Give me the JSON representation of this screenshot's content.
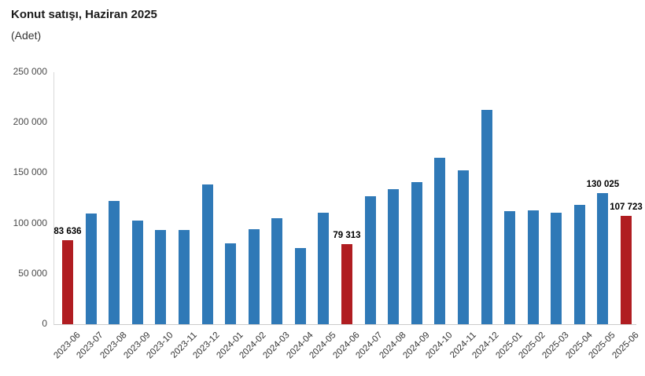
{
  "header": {
    "title": "Konut satışı, Haziran 2025",
    "subtitle": "(Adet)"
  },
  "colors": {
    "bar_blue": "#2f79b7",
    "bar_red": "#b01d21",
    "axis_line": "#d9d9d9",
    "tick_text": "#4a4a4a",
    "data_label_text": "#000000"
  },
  "chart_data": {
    "type": "bar",
    "title": "Konut satışı, Haziran 2025",
    "subtitle": "(Adet)",
    "xlabel": "",
    "ylabel": "Adet",
    "ylim": [
      0,
      250000
    ],
    "grid": false,
    "legend": false,
    "categories": [
      "2023-06",
      "2023-07",
      "2023-08",
      "2023-09",
      "2023-10",
      "2023-11",
      "2023-12",
      "2024-01",
      "2024-02",
      "2024-03",
      "2024-04",
      "2024-05",
      "2024-06",
      "2024-07",
      "2024-08",
      "2024-09",
      "2024-10",
      "2024-11",
      "2024-12",
      "2025-01",
      "2025-02",
      "2025-03",
      "2025-04",
      "2025-05",
      "2025-06"
    ],
    "values": [
      83636,
      109548,
      122091,
      102656,
      93761,
      93514,
      138577,
      80308,
      93902,
      105476,
      75569,
      110588,
      79313,
      127088,
      134155,
      140919,
      165138,
      153014,
      212637,
      112173,
      112818,
      110795,
      118359,
      130025,
      107723
    ],
    "highlight_indices": [
      0,
      12,
      24
    ],
    "data_labels": [
      {
        "index": 0,
        "text": "83 636"
      },
      {
        "index": 12,
        "text": "79 313"
      },
      {
        "index": 23,
        "text": "130 025"
      },
      {
        "index": 24,
        "text": "107 723"
      }
    ],
    "yticks": [
      {
        "value": 0,
        "label": "0"
      },
      {
        "value": 50000,
        "label": "50 000"
      },
      {
        "value": 100000,
        "label": "100 000"
      },
      {
        "value": 150000,
        "label": "150 000"
      },
      {
        "value": 200000,
        "label": "200 000"
      },
      {
        "value": 250000,
        "label": "250 000"
      }
    ]
  }
}
